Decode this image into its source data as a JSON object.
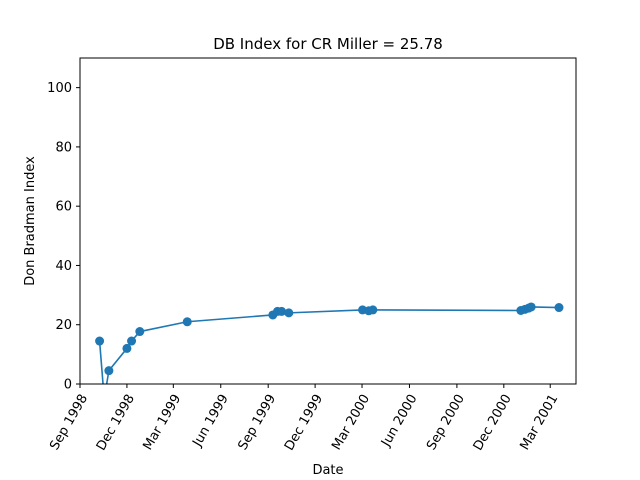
{
  "chart_data": {
    "type": "line",
    "title": "DB Index for CR Miller = 25.78",
    "xlabel": "Date",
    "ylabel": "Don Bradman Index",
    "xlim": [
      "1998-09-01",
      "2001-04-20"
    ],
    "ylim": [
      0,
      110
    ],
    "x_ticks": [
      {
        "date": "1998-09-01",
        "label": "Sep 1998"
      },
      {
        "date": "1998-12-01",
        "label": "Dec 1998"
      },
      {
        "date": "1999-03-01",
        "label": "Mar 1999"
      },
      {
        "date": "1999-06-01",
        "label": "Jun 1999"
      },
      {
        "date": "1999-09-01",
        "label": "Sep 1999"
      },
      {
        "date": "1999-12-01",
        "label": "Dec 1999"
      },
      {
        "date": "2000-03-01",
        "label": "Mar 2000"
      },
      {
        "date": "2000-06-01",
        "label": "Jun 2000"
      },
      {
        "date": "2000-09-01",
        "label": "Sep 2000"
      },
      {
        "date": "2000-12-01",
        "label": "Dec 2000"
      },
      {
        "date": "2001-03-01",
        "label": "Mar 2001"
      }
    ],
    "y_ticks": [
      0,
      20,
      40,
      60,
      80,
      100
    ],
    "grid": false,
    "series": [
      {
        "color": "#1f77b4",
        "marker": "circle",
        "points": [
          {
            "x": "1998-10-09",
            "y": 14.5
          },
          {
            "x": "1998-10-18",
            "y": -5
          },
          {
            "x": "1998-10-27",
            "y": 4.5
          },
          {
            "x": "1998-12-01",
            "y": 12
          },
          {
            "x": "1998-12-10",
            "y": 14.5
          },
          {
            "x": "1998-12-26",
            "y": 17.7
          },
          {
            "x": "1999-03-28",
            "y": 21
          },
          {
            "x": "1999-09-10",
            "y": 23.3
          },
          {
            "x": "1999-09-19",
            "y": 24.5
          },
          {
            "x": "1999-09-27",
            "y": 24.5
          },
          {
            "x": "1999-10-11",
            "y": 24
          },
          {
            "x": "2000-03-02",
            "y": 25
          },
          {
            "x": "2000-03-14",
            "y": 24.7
          },
          {
            "x": "2000-03-22",
            "y": 25
          },
          {
            "x": "2001-01-03",
            "y": 24.8
          },
          {
            "x": "2001-01-11",
            "y": 25.2
          },
          {
            "x": "2001-01-18",
            "y": 25.6
          },
          {
            "x": "2001-01-23",
            "y": 26
          },
          {
            "x": "2001-03-18",
            "y": 25.8
          }
        ]
      }
    ]
  }
}
